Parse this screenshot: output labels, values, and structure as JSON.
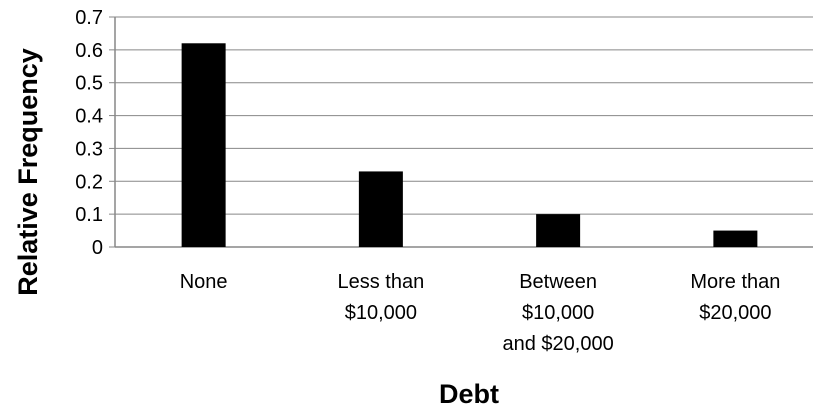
{
  "chart_data": {
    "type": "bar",
    "title": "",
    "xlabel": "Debt",
    "ylabel": "Relative Frequency",
    "categories": [
      [
        "None"
      ],
      [
        "Less than",
        "$10,000"
      ],
      [
        "Between",
        "$10,000",
        "and $20,000"
      ],
      [
        "More than",
        "$20,000"
      ]
    ],
    "values": [
      0.62,
      0.23,
      0.1,
      0.05
    ],
    "ylim": [
      0,
      0.7
    ],
    "yticks": [
      "0",
      "0.1",
      "0.2",
      "0.3",
      "0.4",
      "0.5",
      "0.6",
      "0.7"
    ],
    "grid": true,
    "legend": "none",
    "colors": {
      "bar": "#000000",
      "grid": "#878787",
      "axis": "#878787"
    }
  }
}
